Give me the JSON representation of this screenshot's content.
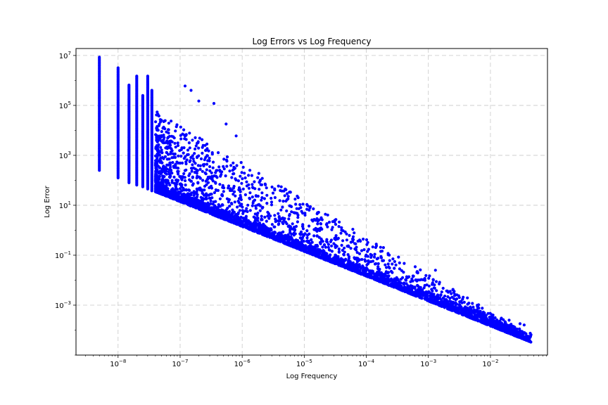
{
  "chart_data": {
    "type": "scatter",
    "title": "Log Errors vs Log Frequency",
    "xlabel": "Log Frequency",
    "ylabel": "Log Error",
    "xscale": "log",
    "yscale": "log",
    "xlim": [
      2.1e-09,
      0.083
    ],
    "ylim": [
      1e-05,
      19000000.0
    ],
    "grid": true,
    "marker_color": "#0000ff",
    "x_ticks": [
      1e-08,
      1e-07,
      1e-06,
      1e-05,
      0.0001,
      0.001,
      0.01
    ],
    "x_tick_labels": [
      {
        "base": "10",
        "exp": "−8"
      },
      {
        "base": "10",
        "exp": "−7"
      },
      {
        "base": "10",
        "exp": "−6"
      },
      {
        "base": "10",
        "exp": "−5"
      },
      {
        "base": "10",
        "exp": "−4"
      },
      {
        "base": "10",
        "exp": "−3"
      },
      {
        "base": "10",
        "exp": "−2"
      }
    ],
    "y_ticks": [
      0.001,
      0.1,
      10,
      1000,
      100000,
      10000000
    ],
    "y_tick_labels": [
      {
        "base": "10",
        "exp": "−3"
      },
      {
        "base": "10",
        "exp": "−1"
      },
      {
        "base": "10",
        "exp": "1"
      },
      {
        "base": "10",
        "exp": "3"
      },
      {
        "base": "10",
        "exp": "5"
      },
      {
        "base": "10",
        "exp": "7"
      }
    ],
    "columns": [
      {
        "x": 5e-09,
        "y_min": 250,
        "y_max": 8500000.0
      },
      {
        "x": 1e-08,
        "y_min": 125,
        "y_max": 3200000.0
      },
      {
        "x": 1.5e-08,
        "y_min": 80,
        "y_max": 650000.0
      },
      {
        "x": 2e-08,
        "y_min": 65,
        "y_max": 1500000.0
      },
      {
        "x": 2.5e-08,
        "y_min": 55,
        "y_max": 250000.0
      },
      {
        "x": 3e-08,
        "y_min": 45,
        "y_max": 1500000.0
      },
      {
        "x": 3.5e-08,
        "y_min": 38,
        "y_max": 400000.0
      }
    ],
    "band": {
      "x_start": 4e-08,
      "x_end": 0.045,
      "lower_at_start": 35,
      "slope": -0.996,
      "upper_at_start": 60000.0
    },
    "outliers": [
      {
        "x": 1.2e-07,
        "y": 600000.0
      },
      {
        "x": 1.5e-07,
        "y": 400000.0
      },
      {
        "x": 2e-07,
        "y": 150000.0
      },
      {
        "x": 3.5e-07,
        "y": 120000.0
      },
      {
        "x": 5.5e-07,
        "y": 18000.0
      },
      {
        "x": 8e-07,
        "y": 6000.0
      },
      {
        "x": 1.5e-06,
        "y": 50
      },
      {
        "x": 2.5e-06,
        "y": 12
      },
      {
        "x": 6e-05,
        "y": 0.35
      },
      {
        "x": 0.0013,
        "y": 0.025
      },
      {
        "x": 0.006,
        "y": 0.0004
      },
      {
        "x": 0.008,
        "y": 0.00033
      },
      {
        "x": 0.011,
        "y": 0.0004
      },
      {
        "x": 0.015,
        "y": 0.0003
      },
      {
        "x": 0.02,
        "y": 0.00025
      },
      {
        "x": 0.03,
        "y": 0.00018
      },
      {
        "x": 0.035,
        "y": 0.00016
      },
      {
        "x": 0.045,
        "y": 6.5e-05
      }
    ]
  }
}
